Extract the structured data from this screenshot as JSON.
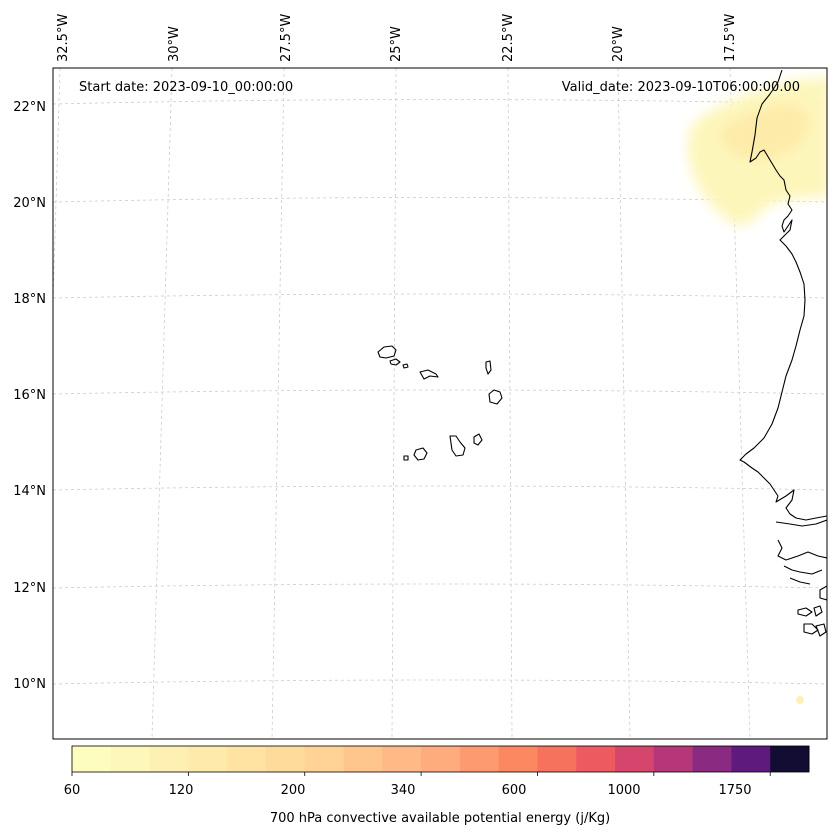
{
  "map": {
    "start_date": "Start date: 2023-09-10_00:00:00",
    "valid_date": "Valid_date: 2023-09-10T06:00:00.00",
    "lon_labels": [
      "32.5°W",
      "30°W",
      "27.5°W",
      "25°W",
      "22.5°W",
      "20°W",
      "17.5°W"
    ],
    "lat_labels": [
      "22°N",
      "20°N",
      "18°N",
      "16°N",
      "14°N",
      "12°N",
      "10°N"
    ],
    "gridlines": true,
    "colors": {
      "coastline": "#000000",
      "gridline": "#cccccc",
      "frame": "#000000"
    }
  },
  "colorbar": {
    "label": "700 hPa convective available potential energy (j/Kg)",
    "tick_labels": [
      "60",
      "120",
      "200",
      "340",
      "600",
      "1000",
      "1750"
    ],
    "colors": [
      "#fcfdbf",
      "#fdf7b9",
      "#fdf0b2",
      "#feeaaa",
      "#fee3a2",
      "#fddb9b",
      "#fed395",
      "#fec68c",
      "#feb986",
      "#feac7e",
      "#fd9a6f",
      "#fb8861",
      "#f7725c",
      "#ed5a5f",
      "#d6456c",
      "#b53779",
      "#8a2a81",
      "#5e1a7c",
      "#130c33"
    ]
  }
}
